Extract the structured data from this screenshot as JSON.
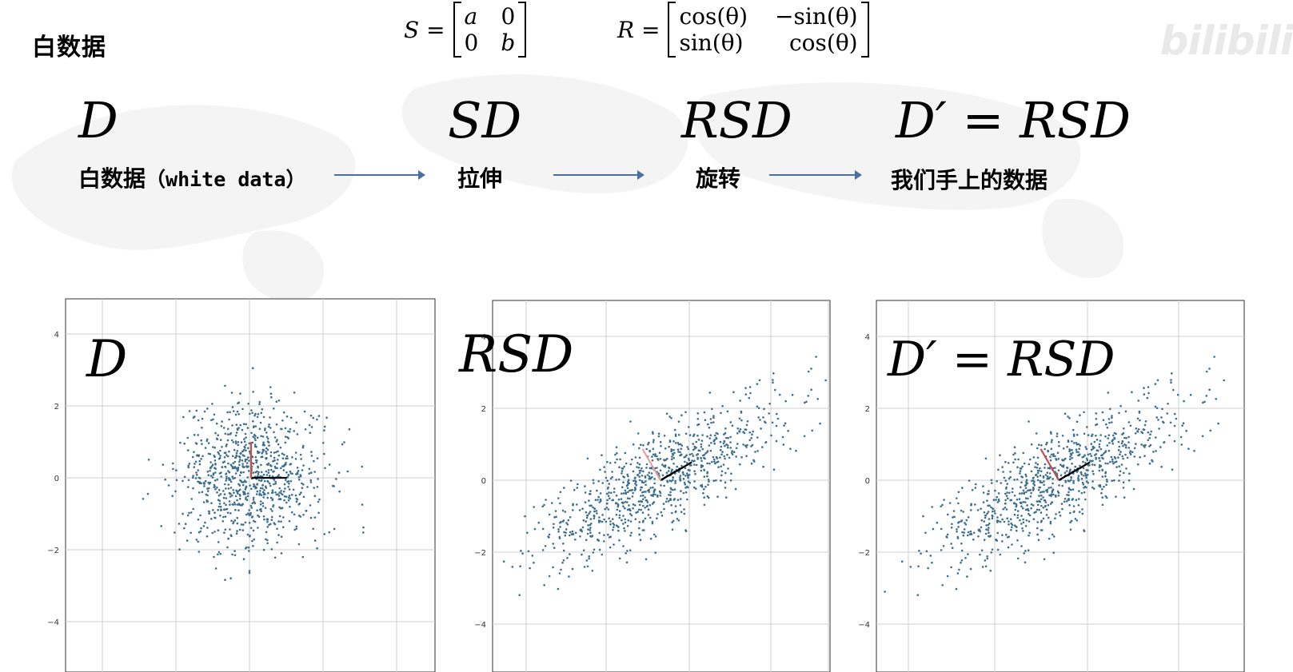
{
  "header": {
    "title": "白数据"
  },
  "formulas": {
    "scale": {
      "lhs": "S =",
      "m11": "a",
      "m12": "0",
      "m21": "0",
      "m22": "b"
    },
    "rotation": {
      "lhs": "R =",
      "m11": "cos(θ)",
      "m12": "−sin(θ)",
      "m21": "sin(θ)",
      "m22": "cos(θ)"
    }
  },
  "pipeline": [
    {
      "symbol": "D",
      "label_cn": "白数据",
      "label_mono": "（white data）"
    },
    {
      "symbol": "SD",
      "label_cn": "拉伸"
    },
    {
      "symbol": "RSD",
      "label_cn": "旋转"
    },
    {
      "symbol": "D′ = RSD",
      "label_cn": "我们手上的数据"
    }
  ],
  "logo": "bilibili",
  "point_color": "#3b6e8f",
  "chart_data": [
    {
      "type": "scatter",
      "title": "D",
      "xlim": [
        -5,
        5
      ],
      "ylim": [
        -5,
        5
      ],
      "yticks": [
        4,
        2,
        0,
        -2,
        -4
      ],
      "grid": true,
      "distribution": {
        "scale": [
          1.0,
          1.0
        ],
        "rotation_deg": 0,
        "n": 900,
        "seed": 7
      },
      "axes_vectors": [
        {
          "color": "#000000",
          "dx": 1.0,
          "dy": 0.0
        },
        {
          "color": "#c0504d",
          "dx": 0.0,
          "dy": 1.0
        }
      ]
    },
    {
      "type": "scatter",
      "title": "RSD",
      "xlim": [
        -5,
        5
      ],
      "ylim": [
        -5,
        5
      ],
      "yticks": [
        4,
        2,
        0,
        -2,
        -4
      ],
      "grid": true,
      "distribution": {
        "scale": [
          2.0,
          0.6
        ],
        "rotation_deg": 30,
        "n": 900,
        "seed": 7
      },
      "axes_vectors": [
        {
          "color": "#000000",
          "dx": 0.87,
          "dy": 0.5
        },
        {
          "color": "#e8a0a0",
          "dx": -0.5,
          "dy": 0.87
        }
      ]
    },
    {
      "type": "scatter",
      "title": "D′ = RSD",
      "xlim": [
        -5,
        5
      ],
      "ylim": [
        -5,
        5
      ],
      "yticks": [
        4,
        2,
        0,
        -2,
        -4
      ],
      "grid": true,
      "distribution": {
        "scale": [
          2.0,
          0.6
        ],
        "rotation_deg": 30,
        "n": 900,
        "seed": 7
      },
      "axes_vectors": [
        {
          "color": "#000000",
          "dx": 0.87,
          "dy": 0.5
        },
        {
          "color": "#c0504d",
          "dx": -0.5,
          "dy": 0.87
        }
      ]
    }
  ]
}
